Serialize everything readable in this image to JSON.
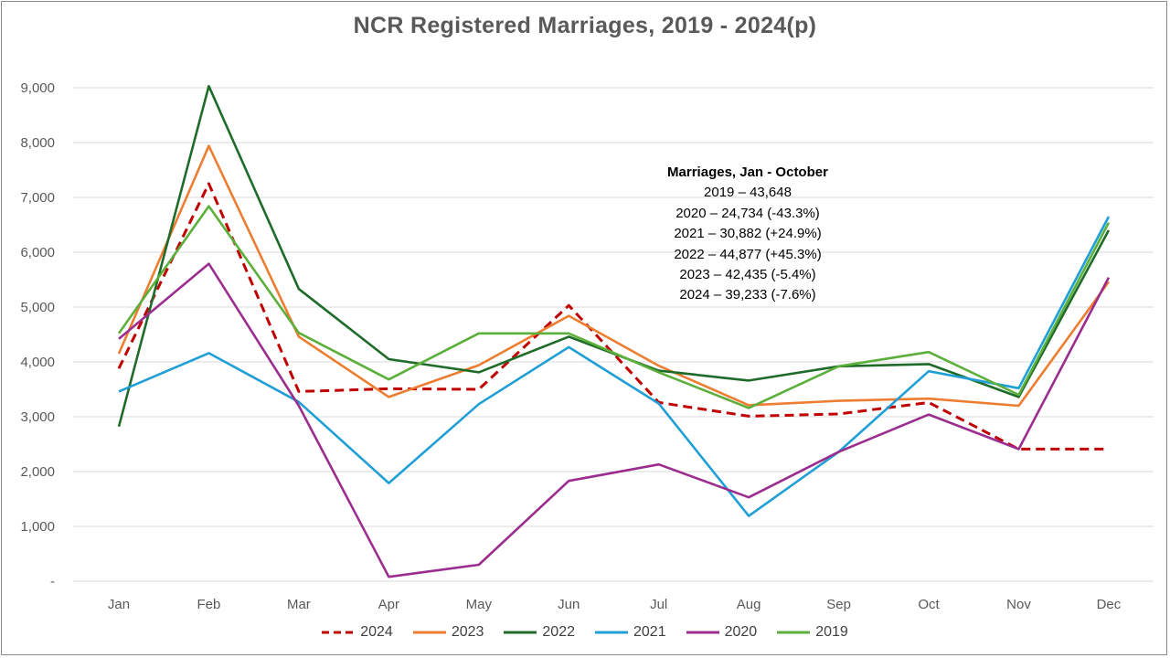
{
  "chart_data": {
    "type": "line",
    "title": "NCR Registered Marriages, 2019 - 2024(p)",
    "categories": [
      "Jan",
      "Feb",
      "Mar",
      "Apr",
      "May",
      "Jun",
      "Jul",
      "Aug",
      "Sep",
      "Oct",
      "Nov",
      "Dec"
    ],
    "y_ticks": [
      "-",
      "1,000",
      "2,000",
      "3,000",
      "4,000",
      "5,000",
      "6,000",
      "7,000",
      "8,000",
      "9,000"
    ],
    "ylim": [
      0,
      9000
    ],
    "grid": true,
    "legend_position": "bottom",
    "series": [
      {
        "name": "2024",
        "color": "#C00000",
        "dash": true,
        "values": [
          3880,
          7250,
          3460,
          3510,
          3500,
          5030,
          3260,
          3010,
          3050,
          3260,
          2410,
          2410
        ]
      },
      {
        "name": "2023",
        "color": "#ED7D31",
        "dash": false,
        "values": [
          4150,
          7940,
          4460,
          3360,
          3940,
          4840,
          3930,
          3210,
          3290,
          3330,
          3200,
          5460
        ]
      },
      {
        "name": "2022",
        "color": "#1E6B2A",
        "dash": false,
        "values": [
          2820,
          9030,
          5330,
          4050,
          3810,
          4460,
          3840,
          3660,
          3920,
          3960,
          3360,
          6400
        ]
      },
      {
        "name": "2021",
        "color": "#1F9FD6",
        "dash": false,
        "values": [
          3460,
          4160,
          3270,
          1790,
          3230,
          4270,
          3240,
          1190,
          2360,
          3830,
          3520,
          6650
        ]
      },
      {
        "name": "2020",
        "color": "#9B2D8E",
        "dash": false,
        "values": [
          4420,
          5790,
          3200,
          80,
          300,
          1830,
          2130,
          1530,
          2360,
          3040,
          2410,
          5540
        ]
      },
      {
        "name": "2019",
        "color": "#5BAF3A",
        "dash": false,
        "values": [
          4520,
          6840,
          4530,
          3680,
          4520,
          4520,
          3810,
          3160,
          3920,
          4180,
          3400,
          6540
        ]
      }
    ],
    "annotation": {
      "heading": "Marriages, Jan  - October",
      "lines": [
        "2019 – 43,648",
        "2020 – 24,734 (-43.3%)",
        "2021 – 30,882 (+24.9%)",
        "2022 – 44,877 (+45.3%)",
        "2023 – 42,435 (-5.4%)",
        "2024 – 39,233 (-7.6%)"
      ]
    }
  }
}
